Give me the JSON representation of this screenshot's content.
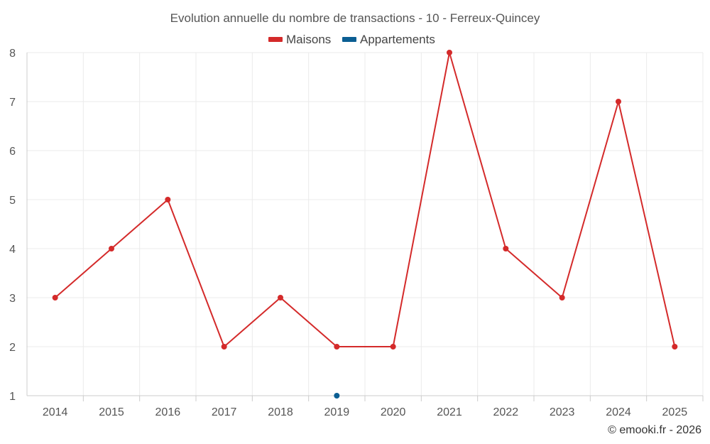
{
  "chart_data": {
    "type": "line",
    "title": "Evolution annuelle du nombre de transactions - 10 - Ferreux-Quincey",
    "categories": [
      "2014",
      "2015",
      "2016",
      "2017",
      "2018",
      "2019",
      "2020",
      "2021",
      "2022",
      "2023",
      "2024",
      "2025"
    ],
    "series": [
      {
        "name": "Maisons",
        "color": "#d42a2a",
        "values": [
          3,
          4,
          5,
          2,
          3,
          2,
          2,
          8,
          4,
          3,
          7,
          2
        ]
      },
      {
        "name": "Appartements",
        "color": "#0b5e93",
        "values": [
          null,
          null,
          null,
          null,
          null,
          1,
          null,
          null,
          null,
          null,
          null,
          null
        ]
      }
    ],
    "yticks": [
      "1",
      "2",
      "3",
      "4",
      "5",
      "6",
      "7",
      "8"
    ],
    "ylim": [
      1,
      8
    ],
    "grid": true,
    "legend_position": "top-center"
  },
  "footer": {
    "credit": "© emooki.fr - 2026"
  }
}
